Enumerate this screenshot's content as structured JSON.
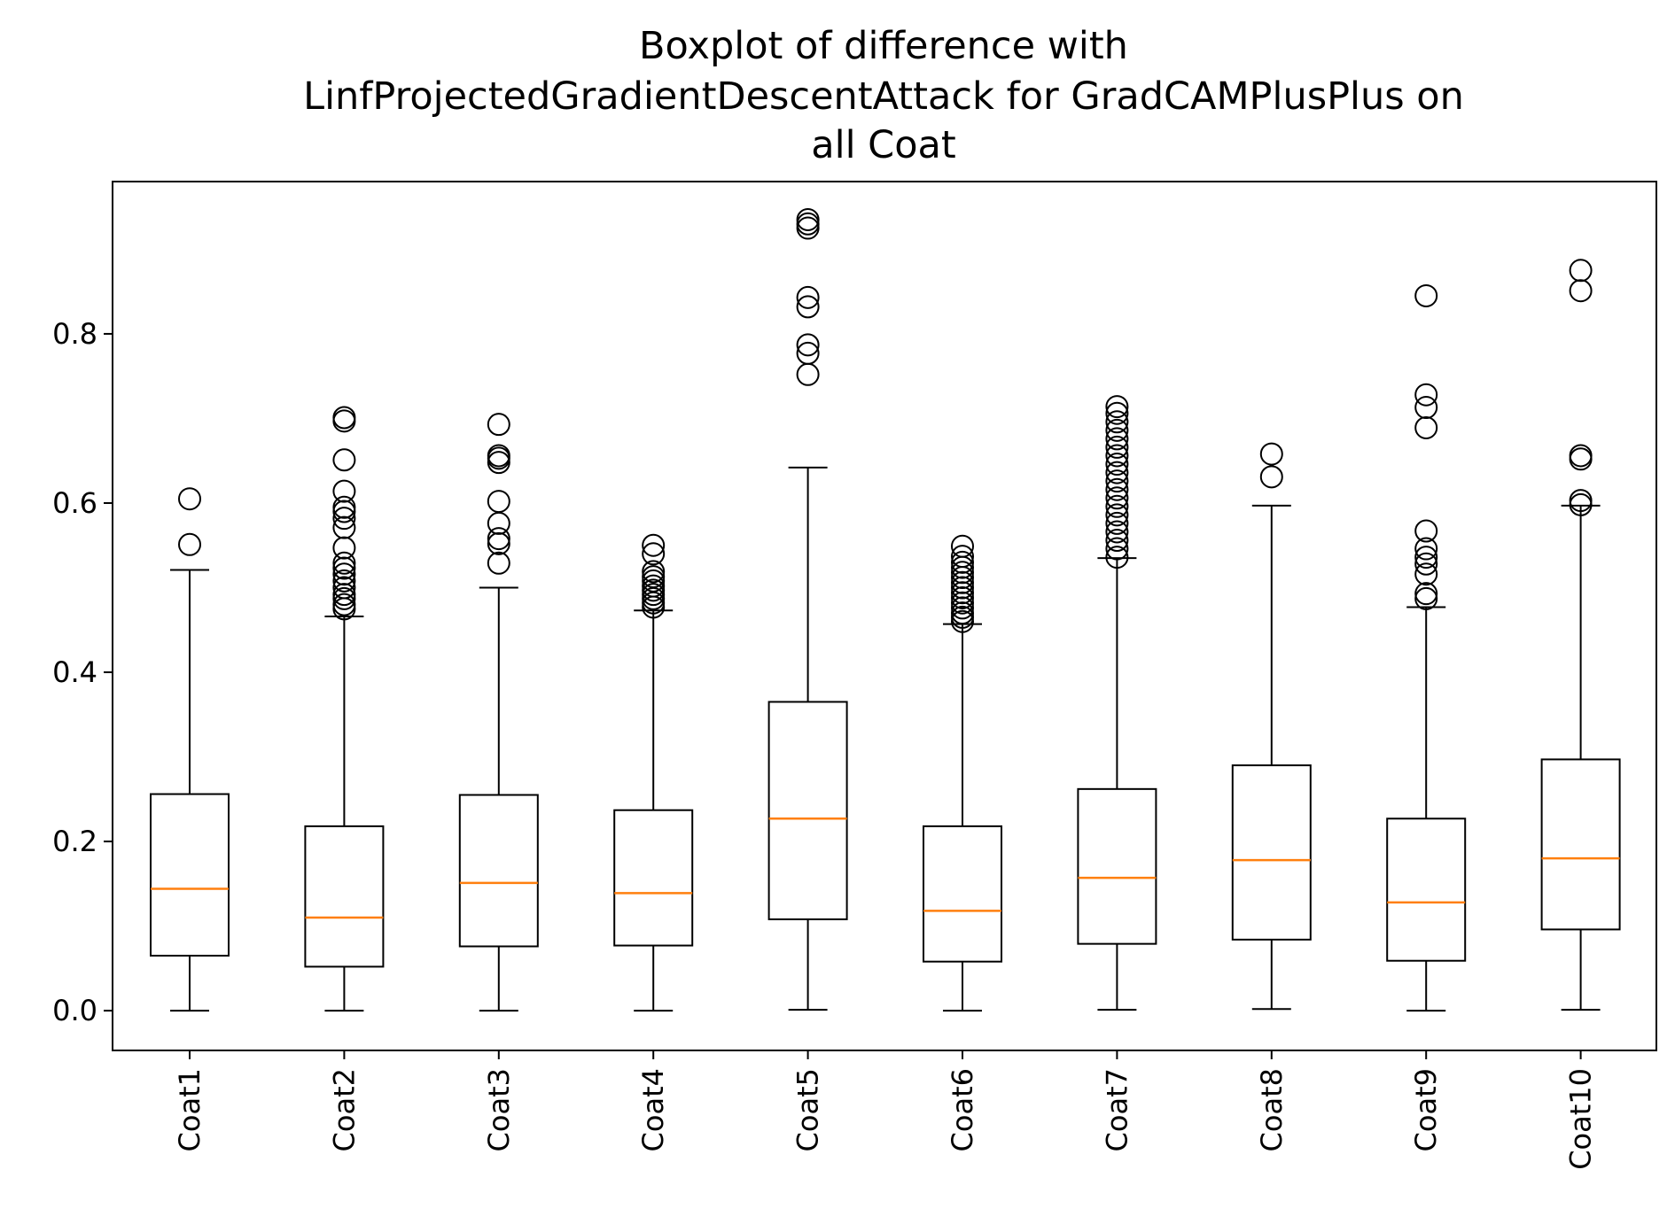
{
  "chart_data": {
    "type": "box",
    "title_lines": [
      "Boxplot of difference with",
      "LinfProjectedGradientDescentAttack for GradCAMPlusPlus on",
      "all Coat"
    ],
    "xlabel": "",
    "ylabel": "",
    "ylim": [
      -0.047,
      0.98
    ],
    "yticks": [
      0.0,
      0.2,
      0.4,
      0.6,
      0.8
    ],
    "ytick_labels": [
      "0.0",
      "0.2",
      "0.4",
      "0.6",
      "0.8"
    ],
    "categories": [
      "Coat1",
      "Coat2",
      "Coat3",
      "Coat4",
      "Coat5",
      "Coat6",
      "Coat7",
      "Coat8",
      "Coat9",
      "Coat10"
    ],
    "box_color": "#000000",
    "median_color": "#ff7f0e",
    "grid": false,
    "boxes": [
      {
        "label": "Coat1",
        "whisker_low": 0.0,
        "q1": 0.065,
        "median": 0.144,
        "q3": 0.256,
        "whisker_high": 0.521,
        "fliers": [
          0.551,
          0.605
        ]
      },
      {
        "label": "Coat2",
        "whisker_low": 0.0,
        "q1": 0.052,
        "median": 0.11,
        "q3": 0.218,
        "whisker_high": 0.466,
        "fliers": [
          0.475,
          0.48,
          0.487,
          0.492,
          0.5,
          0.508,
          0.516,
          0.523,
          0.529,
          0.547,
          0.571,
          0.582,
          0.59,
          0.595,
          0.614,
          0.651,
          0.697,
          0.701
        ]
      },
      {
        "label": "Coat3",
        "whisker_low": 0.0,
        "q1": 0.076,
        "median": 0.151,
        "q3": 0.255,
        "whisker_high": 0.5,
        "fliers": [
          0.529,
          0.552,
          0.558,
          0.576,
          0.602,
          0.648,
          0.653,
          0.656,
          0.693
        ]
      },
      {
        "label": "Coat4",
        "whisker_low": 0.0,
        "q1": 0.077,
        "median": 0.139,
        "q3": 0.237,
        "whisker_high": 0.473,
        "fliers": [
          0.477,
          0.482,
          0.487,
          0.492,
          0.497,
          0.502,
          0.508,
          0.513,
          0.519,
          0.54,
          0.55
        ]
      },
      {
        "label": "Coat5",
        "whisker_low": 0.001,
        "q1": 0.108,
        "median": 0.227,
        "q3": 0.365,
        "whisker_high": 0.642,
        "fliers": [
          0.752,
          0.777,
          0.787,
          0.832,
          0.843,
          0.925,
          0.93,
          0.935
        ]
      },
      {
        "label": "Coat6",
        "whisker_low": 0.0,
        "q1": 0.058,
        "median": 0.118,
        "q3": 0.218,
        "whisker_high": 0.457,
        "fliers": [
          0.46,
          0.465,
          0.47,
          0.476,
          0.482,
          0.488,
          0.494,
          0.5,
          0.506,
          0.512,
          0.518,
          0.524,
          0.53,
          0.537,
          0.549
        ]
      },
      {
        "label": "Coat7",
        "whisker_low": 0.001,
        "q1": 0.079,
        "median": 0.157,
        "q3": 0.262,
        "whisker_high": 0.535,
        "fliers": [
          0.536,
          0.546,
          0.556,
          0.566,
          0.576,
          0.586,
          0.596,
          0.606,
          0.616,
          0.626,
          0.636,
          0.646,
          0.656,
          0.666,
          0.676,
          0.686,
          0.696,
          0.706,
          0.714
        ]
      },
      {
        "label": "Coat8",
        "whisker_low": 0.002,
        "q1": 0.084,
        "median": 0.178,
        "q3": 0.29,
        "whisker_high": 0.597,
        "fliers": [
          0.631,
          0.658
        ]
      },
      {
        "label": "Coat9",
        "whisker_low": 0.0,
        "q1": 0.059,
        "median": 0.128,
        "q3": 0.227,
        "whisker_high": 0.477,
        "fliers": [
          0.487,
          0.493,
          0.516,
          0.528,
          0.536,
          0.546,
          0.567,
          0.689,
          0.713,
          0.728,
          0.845
        ]
      },
      {
        "label": "Coat10",
        "whisker_low": 0.001,
        "q1": 0.096,
        "median": 0.18,
        "q3": 0.297,
        "whisker_high": 0.597,
        "fliers": [
          0.598,
          0.603,
          0.652,
          0.656,
          0.851,
          0.875
        ]
      }
    ]
  }
}
